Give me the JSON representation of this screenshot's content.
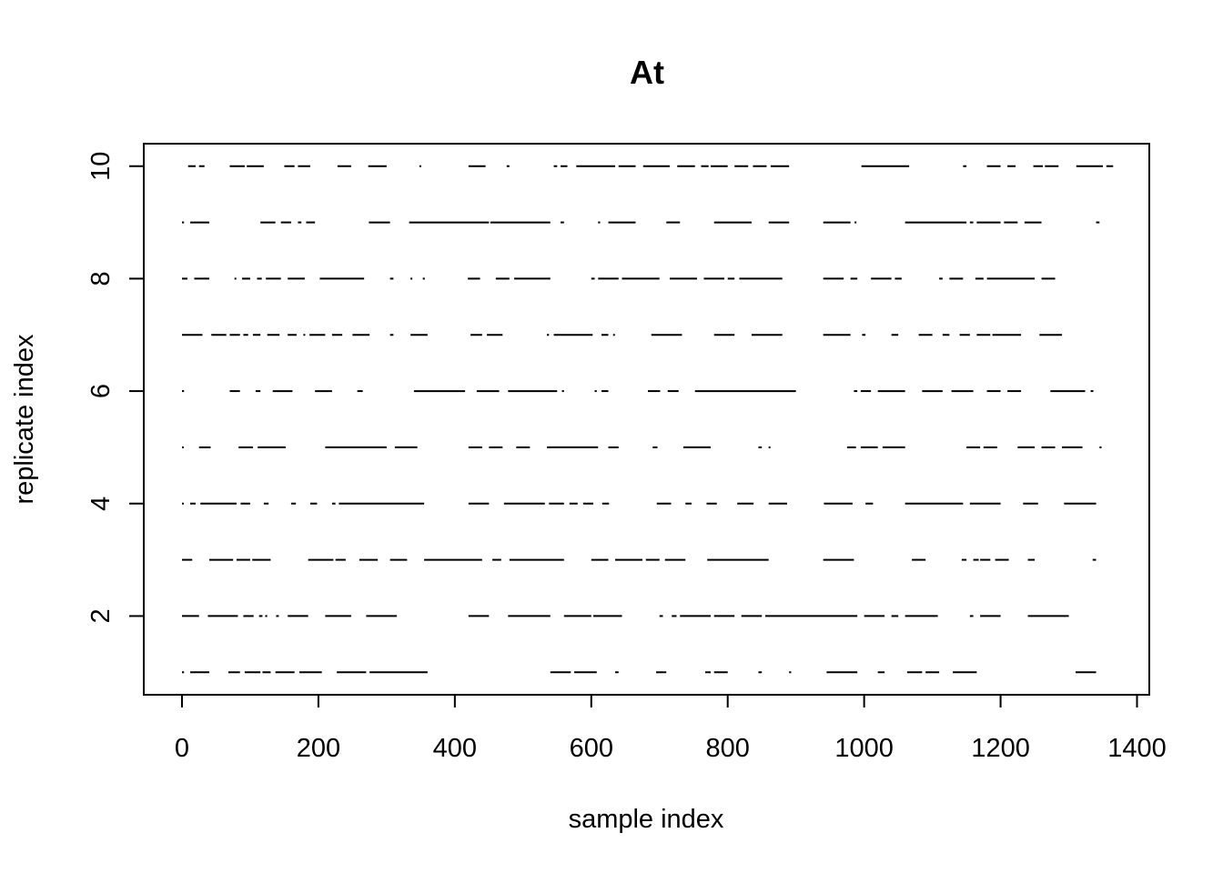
{
  "chart_data": {
    "type": "segments",
    "title": "At",
    "xlabel": "sample index",
    "ylabel": "replicate index",
    "xlim": [
      -56,
      1418
    ],
    "ylim": [
      0.6,
      10.4
    ],
    "x_ticks": [
      0,
      200,
      400,
      600,
      800,
      1000,
      1200,
      1400
    ],
    "y_ticks": [
      2,
      4,
      6,
      8,
      10
    ],
    "grid": false,
    "line_color": "#000000",
    "series": [
      {
        "y": 1,
        "segments": [
          [
            0,
            3
          ],
          [
            12,
            40
          ],
          [
            68,
            85
          ],
          [
            92,
            115
          ],
          [
            118,
            130
          ],
          [
            137,
            165
          ],
          [
            172,
            205
          ],
          [
            227,
            270
          ],
          [
            275,
            360
          ],
          [
            540,
            570
          ],
          [
            575,
            608
          ],
          [
            635,
            640
          ],
          [
            695,
            710
          ],
          [
            767,
            775
          ],
          [
            780,
            800
          ],
          [
            845,
            850
          ],
          [
            890,
            893
          ],
          [
            945,
            990
          ],
          [
            1020,
            1030
          ],
          [
            1063,
            1085
          ],
          [
            1090,
            1110
          ],
          [
            1130,
            1165
          ],
          [
            1310,
            1340
          ]
        ]
      },
      {
        "y": 2,
        "segments": [
          [
            0,
            25
          ],
          [
            38,
            82
          ],
          [
            90,
            105
          ],
          [
            113,
            118
          ],
          [
            122,
            125
          ],
          [
            138,
            142
          ],
          [
            155,
            185
          ],
          [
            210,
            248
          ],
          [
            270,
            315
          ],
          [
            420,
            450
          ],
          [
            478,
            540
          ],
          [
            560,
            600
          ],
          [
            603,
            645
          ],
          [
            700,
            705
          ],
          [
            718,
            725
          ],
          [
            730,
            775
          ],
          [
            780,
            810
          ],
          [
            820,
            850
          ],
          [
            855,
            990
          ],
          [
            1000,
            1030
          ],
          [
            1040,
            1050
          ],
          [
            1060,
            1108
          ],
          [
            1155,
            1160
          ],
          [
            1170,
            1200
          ],
          [
            1240,
            1300
          ]
        ]
      },
      {
        "y": 3,
        "segments": [
          [
            0,
            15
          ],
          [
            40,
            75
          ],
          [
            80,
            100
          ],
          [
            103,
            130
          ],
          [
            185,
            222
          ],
          [
            225,
            240
          ],
          [
            260,
            287
          ],
          [
            305,
            330
          ],
          [
            355,
            440
          ],
          [
            455,
            468
          ],
          [
            480,
            560
          ],
          [
            600,
            625
          ],
          [
            635,
            675
          ],
          [
            680,
            700
          ],
          [
            708,
            738
          ],
          [
            770,
            860
          ],
          [
            940,
            985
          ],
          [
            1070,
            1090
          ],
          [
            1143,
            1150
          ],
          [
            1160,
            1168
          ],
          [
            1170,
            1185
          ],
          [
            1192,
            1212
          ],
          [
            1240,
            1250
          ],
          [
            1335,
            1340
          ]
        ]
      },
      {
        "y": 4,
        "segments": [
          [
            0,
            2
          ],
          [
            12,
            20
          ],
          [
            27,
            80
          ],
          [
            86,
            100
          ],
          [
            120,
            127
          ],
          [
            160,
            167
          ],
          [
            188,
            198
          ],
          [
            220,
            225
          ],
          [
            230,
            355
          ],
          [
            420,
            450
          ],
          [
            472,
            532
          ],
          [
            538,
            560
          ],
          [
            568,
            580
          ],
          [
            588,
            603
          ],
          [
            616,
            626
          ],
          [
            696,
            717
          ],
          [
            738,
            747
          ],
          [
            769,
            784
          ],
          [
            814,
            838
          ],
          [
            860,
            887
          ],
          [
            941,
            983
          ],
          [
            1002,
            1013
          ],
          [
            1060,
            1145
          ],
          [
            1155,
            1200
          ],
          [
            1233,
            1255
          ],
          [
            1293,
            1340
          ]
        ]
      },
      {
        "y": 5,
        "segments": [
          [
            0,
            2
          ],
          [
            25,
            42
          ],
          [
            83,
            104
          ],
          [
            111,
            152
          ],
          [
            210,
            300
          ],
          [
            312,
            345
          ],
          [
            420,
            440
          ],
          [
            450,
            470
          ],
          [
            490,
            510
          ],
          [
            535,
            610
          ],
          [
            625,
            640
          ],
          [
            690,
            697
          ],
          [
            735,
            775
          ],
          [
            845,
            850
          ],
          [
            860,
            862
          ],
          [
            975,
            988
          ],
          [
            995,
            1020
          ],
          [
            1027,
            1060
          ],
          [
            1150,
            1170
          ],
          [
            1175,
            1195
          ],
          [
            1225,
            1250
          ],
          [
            1260,
            1280
          ],
          [
            1290,
            1320
          ],
          [
            1345,
            1348
          ]
        ]
      },
      {
        "y": 6,
        "segments": [
          [
            0,
            3
          ],
          [
            70,
            85
          ],
          [
            108,
            115
          ],
          [
            133,
            162
          ],
          [
            195,
            220
          ],
          [
            257,
            265
          ],
          [
            340,
            415
          ],
          [
            432,
            465
          ],
          [
            478,
            550
          ],
          [
            557,
            560
          ],
          [
            605,
            608
          ],
          [
            615,
            625
          ],
          [
            683,
            701
          ],
          [
            712,
            728
          ],
          [
            752,
            900
          ],
          [
            985,
            990
          ],
          [
            995,
            1010
          ],
          [
            1020,
            1060
          ],
          [
            1085,
            1115
          ],
          [
            1128,
            1160
          ],
          [
            1180,
            1200
          ],
          [
            1210,
            1230
          ],
          [
            1273,
            1324
          ],
          [
            1332,
            1336
          ]
        ]
      },
      {
        "y": 7,
        "segments": [
          [
            0,
            30
          ],
          [
            43,
            65
          ],
          [
            70,
            85
          ],
          [
            90,
            97
          ],
          [
            104,
            115
          ],
          [
            125,
            143
          ],
          [
            155,
            168
          ],
          [
            178,
            180
          ],
          [
            187,
            210
          ],
          [
            220,
            235
          ],
          [
            250,
            275
          ],
          [
            305,
            310
          ],
          [
            335,
            360
          ],
          [
            423,
            440
          ],
          [
            447,
            470
          ],
          [
            535,
            538
          ],
          [
            545,
            602
          ],
          [
            615,
            625
          ],
          [
            632,
            634
          ],
          [
            688,
            733
          ],
          [
            780,
            810
          ],
          [
            835,
            880
          ],
          [
            940,
            980
          ],
          [
            997,
            1002
          ],
          [
            1040,
            1050
          ],
          [
            1080,
            1100
          ],
          [
            1115,
            1125
          ],
          [
            1140,
            1155
          ],
          [
            1165,
            1185
          ],
          [
            1188,
            1230
          ],
          [
            1257,
            1290
          ]
        ]
      },
      {
        "y": 8,
        "segments": [
          [
            0,
            8
          ],
          [
            18,
            40
          ],
          [
            77,
            79
          ],
          [
            88,
            100
          ],
          [
            110,
            117
          ],
          [
            123,
            145
          ],
          [
            155,
            180
          ],
          [
            202,
            267
          ],
          [
            305,
            310
          ],
          [
            335,
            337
          ],
          [
            353,
            356
          ],
          [
            419,
            437
          ],
          [
            460,
            480
          ],
          [
            487,
            540
          ],
          [
            600,
            605
          ],
          [
            610,
            640
          ],
          [
            645,
            700
          ],
          [
            715,
            755
          ],
          [
            765,
            795
          ],
          [
            800,
            810
          ],
          [
            817,
            880
          ],
          [
            940,
            970
          ],
          [
            980,
            990
          ],
          [
            1010,
            1040
          ],
          [
            1045,
            1055
          ],
          [
            1110,
            1115
          ],
          [
            1125,
            1145
          ],
          [
            1163,
            1175
          ],
          [
            1180,
            1250
          ],
          [
            1260,
            1280
          ]
        ]
      },
      {
        "y": 9,
        "segments": [
          [
            0,
            3
          ],
          [
            12,
            40
          ],
          [
            115,
            137
          ],
          [
            145,
            160
          ],
          [
            170,
            175
          ],
          [
            182,
            195
          ],
          [
            274,
            305
          ],
          [
            333,
            450
          ],
          [
            452,
            540
          ],
          [
            555,
            560
          ],
          [
            610,
            613
          ],
          [
            625,
            665
          ],
          [
            710,
            730
          ],
          [
            780,
            835
          ],
          [
            860,
            890
          ],
          [
            940,
            980
          ],
          [
            986,
            988
          ],
          [
            1060,
            1150
          ],
          [
            1155,
            1160
          ],
          [
            1165,
            1200
          ],
          [
            1205,
            1225
          ],
          [
            1235,
            1260
          ],
          [
            1340,
            1345
          ]
        ]
      },
      {
        "y": 10,
        "segments": [
          [
            9,
            20
          ],
          [
            25,
            33
          ],
          [
            70,
            92
          ],
          [
            95,
            120
          ],
          [
            150,
            165
          ],
          [
            170,
            188
          ],
          [
            228,
            248
          ],
          [
            273,
            300
          ],
          [
            348,
            350
          ],
          [
            420,
            445
          ],
          [
            476,
            480
          ],
          [
            545,
            550
          ],
          [
            555,
            565
          ],
          [
            578,
            635
          ],
          [
            640,
            665
          ],
          [
            676,
            715
          ],
          [
            726,
            752
          ],
          [
            761,
            772
          ],
          [
            775,
            800
          ],
          [
            810,
            830
          ],
          [
            837,
            857
          ],
          [
            863,
            890
          ],
          [
            996,
            1066
          ],
          [
            1145,
            1150
          ],
          [
            1180,
            1200
          ],
          [
            1210,
            1222
          ],
          [
            1248,
            1262
          ],
          [
            1265,
            1285
          ],
          [
            1311,
            1350
          ],
          [
            1355,
            1365
          ]
        ]
      }
    ]
  }
}
